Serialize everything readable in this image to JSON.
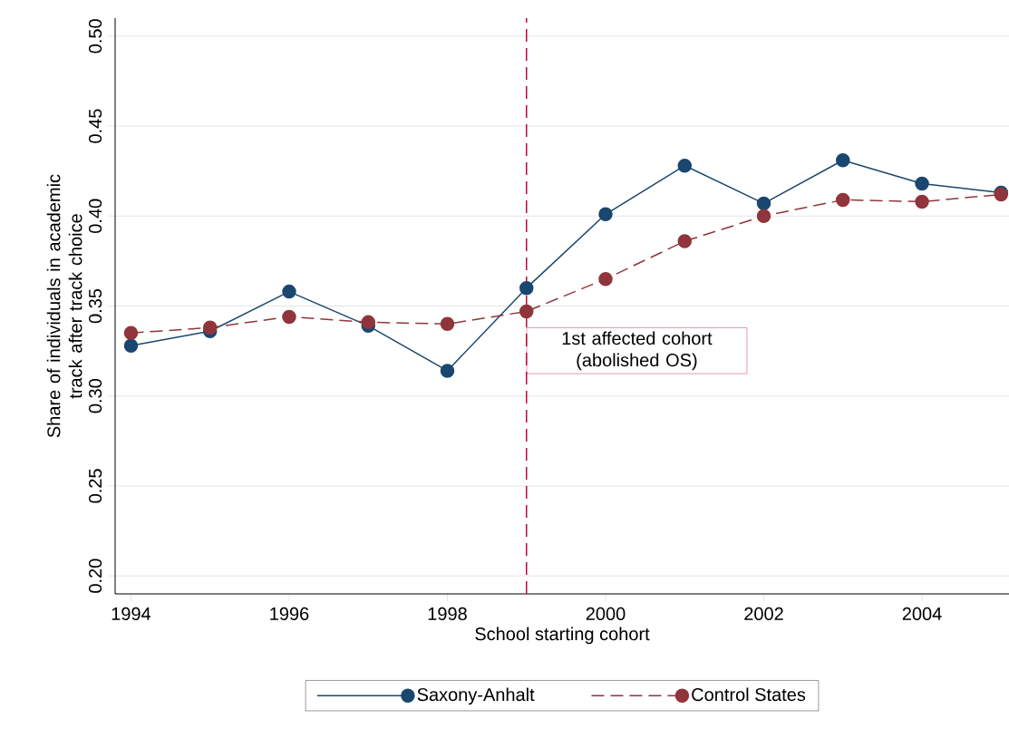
{
  "chart_data": {
    "type": "line",
    "xlabel": "School starting cohort",
    "ylabel": "Share of individuals in academic track after track choice",
    "x": [
      1994,
      1995,
      1996,
      1997,
      1998,
      1999,
      2000,
      2001,
      2002,
      2003,
      2004,
      2005
    ],
    "series": [
      {
        "name": "Saxony-Anhalt",
        "color": "#1a476f",
        "line_style": "solid",
        "values": [
          0.328,
          0.336,
          0.358,
          0.339,
          0.314,
          0.36,
          0.401,
          0.428,
          0.407,
          0.431,
          0.418,
          0.413
        ]
      },
      {
        "name": "Control States",
        "color": "#90353b",
        "line_style": "dashed",
        "values": [
          0.335,
          0.338,
          0.344,
          0.341,
          0.34,
          0.347,
          0.365,
          0.386,
          0.4,
          0.409,
          0.408,
          0.412
        ]
      }
    ],
    "marker": "circle",
    "xlim": [
      1993.8,
      2005.1
    ],
    "ylim": [
      0.19,
      0.51
    ],
    "xticks": [
      1994,
      1996,
      1998,
      2000,
      2002,
      2004
    ],
    "yticks": [
      {
        "value": 0.2,
        "label": "0.20"
      },
      {
        "value": 0.25,
        "label": "0.25"
      },
      {
        "value": 0.3,
        "label": "0.30"
      },
      {
        "value": 0.35,
        "label": "0.35"
      },
      {
        "value": 0.4,
        "label": "0.40"
      },
      {
        "value": 0.45,
        "label": "0.45"
      },
      {
        "value": 0.5,
        "label": "0.50"
      }
    ],
    "grid": "y",
    "legend": "bottom",
    "ref_lines": [
      {
        "axis": "x",
        "value": 1999,
        "label": "1st affected cohort (abolished OS)",
        "color": "#c10534",
        "line_style": "dashed"
      }
    ]
  }
}
